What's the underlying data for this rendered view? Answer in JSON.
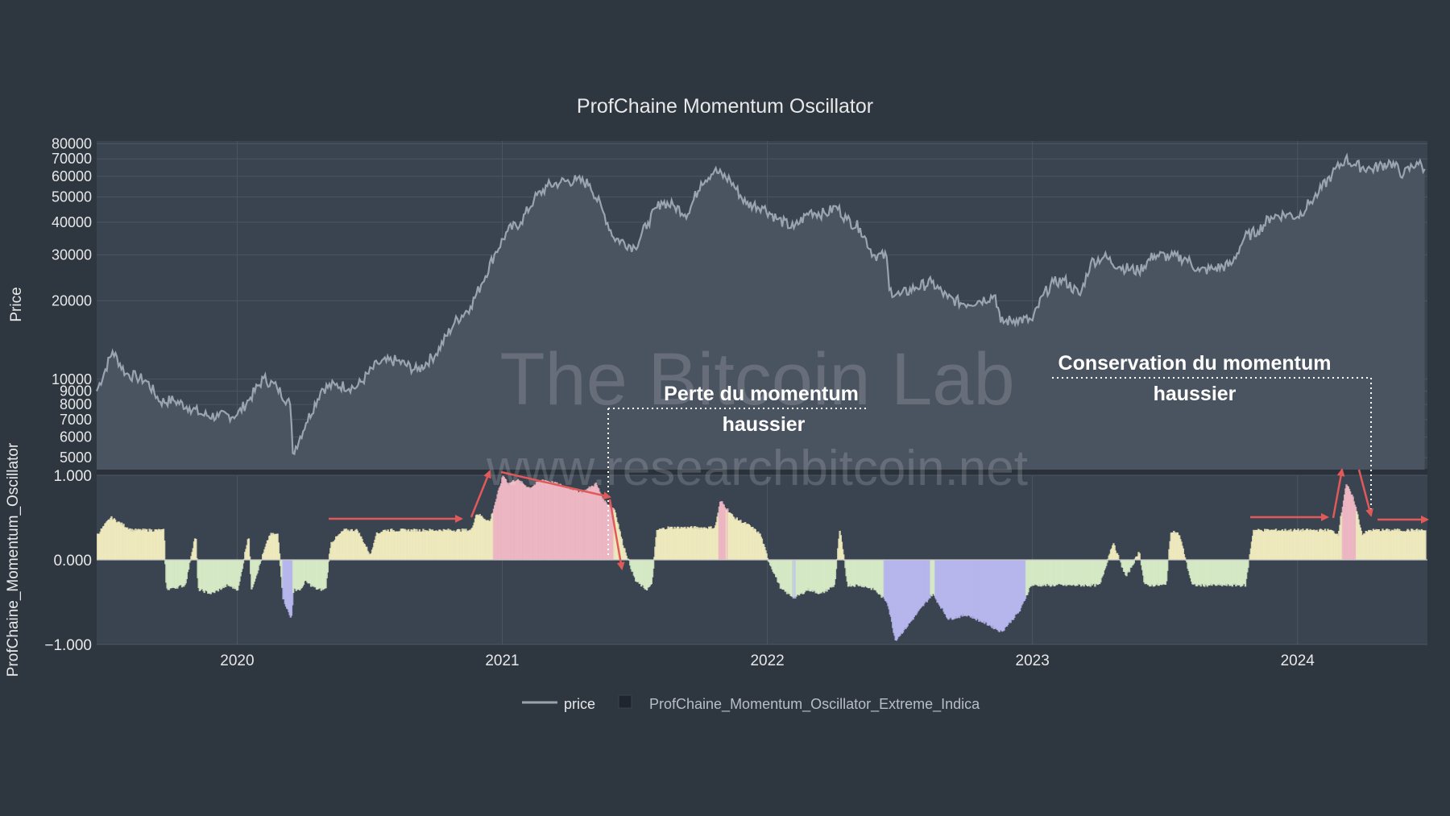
{
  "chart_data": {
    "type": "line",
    "title": "ProfChaine Momentum Oscillator",
    "colors": {
      "background": "#2e3640",
      "plot_bg": "#3a4350",
      "price_line": "#9aa3b0",
      "price_fill": "#4a5360",
      "grid": "#4c5562",
      "axis_text": "#e8e8e8",
      "annot": "#e05a5a",
      "osc_warm": "#f2ecc0",
      "osc_hot": "#f0b8c4",
      "osc_cold": "#b8b8f0",
      "osc_mid": "#d8ecc8"
    },
    "x_ticks": [
      "2020",
      "2021",
      "2022",
      "2023",
      "2024"
    ],
    "x_range": [
      2019.47,
      2024.49
    ],
    "price_axis": {
      "label": "Price",
      "scale": "log",
      "ylim": [
        4500,
        82000
      ],
      "ticks": [
        "80000",
        "70000",
        "60000",
        "50000",
        "40000",
        "30000",
        "20000",
        "10000",
        "9000",
        "8000",
        "7000",
        "6000",
        "5000"
      ]
    },
    "osc_axis": {
      "label": "ProfChaine_Momentum_Oscillator",
      "ylim": [
        -1,
        1
      ],
      "ticks": [
        "1.000",
        "0.000",
        "−1.000"
      ]
    },
    "series": [
      {
        "name": "price",
        "x": [
          2019.47,
          2019.53,
          2019.58,
          2019.62,
          2019.66,
          2019.71,
          2019.76,
          2019.82,
          2019.87,
          2019.93,
          2020.0,
          2020.05,
          2020.1,
          2020.15,
          2020.2,
          2020.21,
          2020.26,
          2020.32,
          2020.37,
          2020.45,
          2020.53,
          2020.6,
          2020.68,
          2020.75,
          2020.82,
          2020.88,
          2020.92,
          2020.97,
          2021.02,
          2021.07,
          2021.12,
          2021.17,
          2021.22,
          2021.28,
          2021.33,
          2021.38,
          2021.42,
          2021.5,
          2021.55,
          2021.6,
          2021.65,
          2021.7,
          2021.75,
          2021.8,
          2021.86,
          2021.92,
          2021.98,
          2022.04,
          2022.1,
          2022.16,
          2022.22,
          2022.26,
          2022.3,
          2022.35,
          2022.4,
          2022.45,
          2022.46,
          2022.5,
          2022.56,
          2022.62,
          2022.68,
          2022.74,
          2022.8,
          2022.86,
          2022.88,
          2022.94,
          2023.0,
          2023.04,
          2023.08,
          2023.12,
          2023.18,
          2023.22,
          2023.27,
          2023.33,
          2023.4,
          2023.46,
          2023.52,
          2023.58,
          2023.63,
          2023.68,
          2023.75,
          2023.8,
          2023.85,
          2023.9,
          2023.96,
          2024.0,
          2024.05,
          2024.08,
          2024.13,
          2024.18,
          2024.22,
          2024.28,
          2024.35,
          2024.4,
          2024.45,
          2024.48
        ],
        "values": [
          9000,
          12800,
          10500,
          10200,
          9800,
          8200,
          8300,
          7800,
          7300,
          7200,
          7300,
          8500,
          10100,
          9300,
          8000,
          5200,
          6800,
          9200,
          9500,
          9300,
          11500,
          11800,
          10800,
          12500,
          16500,
          19000,
          23000,
          30000,
          37000,
          40000,
          49000,
          55000,
          57000,
          58000,
          56000,
          44000,
          35000,
          32000,
          40000,
          48000,
          46000,
          43000,
          57000,
          63000,
          58000,
          47000,
          46000,
          41000,
          38000,
          44000,
          43000,
          46000,
          41000,
          38000,
          30000,
          29500,
          22000,
          21000,
          22500,
          23500,
          20500,
          19500,
          20000,
          21000,
          16500,
          17000,
          16800,
          21000,
          23500,
          24000,
          21000,
          28000,
          29500,
          27000,
          26000,
          30000,
          29500,
          29000,
          26000,
          26500,
          27500,
          35000,
          37000,
          42000,
          43000,
          42000,
          48000,
          52000,
          61000,
          70000,
          66000,
          64000,
          68000,
          61000,
          68000,
          64000
        ]
      },
      {
        "name": "ProfChaine_Momentum_Oscillator_Extreme_Indicator",
        "x": [
          2019.47,
          2019.52,
          2019.6,
          2019.72,
          2019.73,
          2019.8,
          2019.84,
          2019.85,
          2019.9,
          2019.96,
          2020.0,
          2020.04,
          2020.05,
          2020.12,
          2020.15,
          2020.17,
          2020.2,
          2020.21,
          2020.24,
          2020.25,
          2020.3,
          2020.33,
          2020.35,
          2020.4,
          2020.45,
          2020.5,
          2020.52,
          2020.55,
          2020.6,
          2020.75,
          2020.88,
          2020.9,
          2020.95,
          2021.0,
          2021.02,
          2021.05,
          2021.1,
          2021.15,
          2021.2,
          2021.25,
          2021.3,
          2021.35,
          2021.38,
          2021.42,
          2021.45,
          2021.5,
          2021.54,
          2021.56,
          2021.58,
          2021.62,
          2021.8,
          2021.82,
          2021.87,
          2021.93,
          2021.97,
          2022.0,
          2022.05,
          2022.1,
          2022.15,
          2022.2,
          2022.25,
          2022.27,
          2022.3,
          2022.35,
          2022.4,
          2022.45,
          2022.48,
          2022.52,
          2022.57,
          2022.62,
          2022.68,
          2022.75,
          2022.82,
          2022.88,
          2022.95,
          2022.99,
          2023.0,
          2023.05,
          2023.1,
          2023.15,
          2023.2,
          2023.25,
          2023.3,
          2023.35,
          2023.4,
          2023.42,
          2023.45,
          2023.5,
          2023.52,
          2023.55,
          2023.6,
          2023.65,
          2023.72,
          2023.8,
          2023.83,
          2023.95,
          2024.05,
          2024.12,
          2024.15,
          2024.18,
          2024.21,
          2024.24,
          2024.27,
          2024.3,
          2024.4,
          2024.48
        ],
        "values": [
          0.3,
          0.5,
          0.35,
          0.35,
          -0.35,
          -0.3,
          0.3,
          -0.35,
          -0.4,
          -0.3,
          -0.35,
          0.3,
          -0.35,
          0.3,
          0.3,
          -0.45,
          -0.7,
          -0.35,
          -0.35,
          -0.25,
          -0.35,
          -0.35,
          0.2,
          0.35,
          0.35,
          0.05,
          0.3,
          0.35,
          0.35,
          0.35,
          0.35,
          0.55,
          0.45,
          1.0,
          0.9,
          0.95,
          0.85,
          0.95,
          0.9,
          0.85,
          0.8,
          0.9,
          0.7,
          0.6,
          0.2,
          -0.25,
          -0.35,
          -0.3,
          0.35,
          0.38,
          0.38,
          0.7,
          0.5,
          0.4,
          0.3,
          0.0,
          -0.35,
          -0.45,
          -0.35,
          -0.4,
          -0.3,
          0.35,
          -0.3,
          -0.3,
          -0.35,
          -0.5,
          -0.95,
          -0.8,
          -0.6,
          -0.4,
          -0.7,
          -0.65,
          -0.75,
          -0.85,
          -0.6,
          -0.3,
          -0.3,
          -0.3,
          -0.3,
          -0.3,
          -0.3,
          -0.3,
          0.2,
          -0.2,
          0.1,
          -0.3,
          -0.3,
          -0.3,
          0.35,
          0.3,
          -0.3,
          -0.3,
          -0.3,
          -0.3,
          0.35,
          0.35,
          0.35,
          0.35,
          0.3,
          0.9,
          0.7,
          0.3,
          0.35,
          0.35,
          0.35,
          0.35
        ]
      }
    ],
    "legend": {
      "position": "bottom-center",
      "entries": [
        "price",
        "ProfChaine_Momentum_Oscillator_Extreme_Indica"
      ]
    },
    "watermark": [
      "The Bitcoin Lab",
      "www.researchbitcoin.net"
    ],
    "annotations": [
      {
        "lines": [
          "Perte du momentum",
          "haussier"
        ]
      },
      {
        "lines": [
          "Conservation du momentum",
          "haussier"
        ]
      }
    ]
  }
}
